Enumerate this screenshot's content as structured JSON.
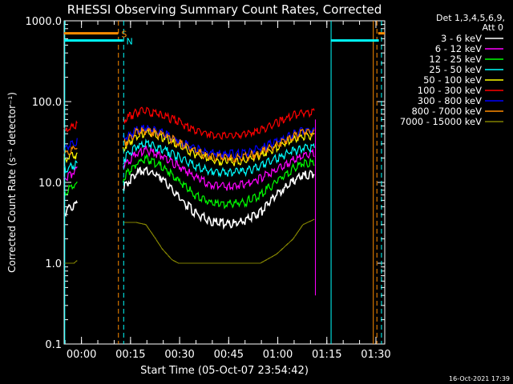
{
  "chart_data": {
    "type": "line",
    "title": "RHESSI Observing Summary Count Rates, Corrected",
    "xlabel": "Start Time (05-Oct-07 23:54:42)",
    "ylabel": "Corrected Count Rate (s⁻¹ detector⁻¹)",
    "y_scale": "log",
    "ylim": [
      0.1,
      1000
    ],
    "xlim_minutes": [
      0,
      98
    ],
    "y_ticks": [
      "0.1",
      "1.0",
      "10.0",
      "100.0",
      "1000.0"
    ],
    "x_ticks": [
      {
        "label": "00:00",
        "min": 5.3
      },
      {
        "label": "00:15",
        "min": 20.3
      },
      {
        "label": "00:30",
        "min": 35.3
      },
      {
        "label": "00:45",
        "min": 50.3
      },
      {
        "label": "01:00",
        "min": 65.3
      },
      {
        "label": "01:15",
        "min": 80.3
      },
      {
        "label": "01:30",
        "min": 95.3
      }
    ],
    "legend_header": [
      "Det 1,3,4,5,6,9,",
      "Att 0"
    ],
    "legend_position": "right",
    "timestamp": "16-Oct-2021 17:39",
    "flags": [
      {
        "label": "S",
        "color": "#ff8c00",
        "value": 700,
        "segments": [
          [
            0,
            16.5
          ],
          [
            96,
            98
          ]
        ]
      },
      {
        "label": "N",
        "color": "#00ffff",
        "value": 570,
        "segments": [
          [
            0,
            18
          ],
          [
            81.5,
            96.2
          ]
        ]
      }
    ],
    "markers": [
      {
        "min": 16.6,
        "color": "#ff8c00"
      },
      {
        "min": 18.2,
        "color": "#00ffff"
      },
      {
        "min": 95.6,
        "color": "#ff8c00"
      },
      {
        "min": 97.0,
        "color": "#00ffff"
      }
    ],
    "gaps": [
      {
        "min": 0.2,
        "color": "#00ffff"
      },
      {
        "min": 81.6,
        "color": "#00ffff"
      },
      {
        "min": 94.5,
        "color": "#ff8c00"
      }
    ],
    "series": [
      {
        "name": "3 - 6 keV",
        "color": "#ffffff",
        "x": [
          0,
          4,
          18,
          22,
          25,
          30,
          35,
          40,
          45,
          50,
          55,
          60,
          65,
          70,
          73,
          76.5
        ],
        "y": [
          4.5,
          6,
          9,
          14,
          15,
          12,
          7,
          4.5,
          3.5,
          3.3,
          3.5,
          4.5,
          7.5,
          11,
          13,
          13.5
        ]
      },
      {
        "name": "6 - 12 keV",
        "color": "#ff00ff",
        "x": [
          0,
          4,
          18,
          22,
          25,
          30,
          35,
          40,
          45,
          50,
          55,
          60,
          65,
          70,
          73,
          76.5
        ],
        "y": [
          12,
          15,
          17,
          24,
          27,
          23,
          17,
          12.5,
          10,
          9.5,
          10,
          12,
          15.5,
          20,
          23,
          24
        ]
      },
      {
        "name": "12 - 25 keV",
        "color": "#00ff00",
        "x": [
          0,
          4,
          18,
          22,
          25,
          30,
          35,
          40,
          45,
          50,
          55,
          60,
          65,
          70,
          73,
          76.5
        ],
        "y": [
          8,
          10,
          12,
          18,
          21,
          17,
          11,
          7.5,
          6,
          5.8,
          6,
          7.5,
          11,
          16,
          18.5,
          19
        ]
      },
      {
        "name": "25 - 50 keV",
        "color": "#00ffff",
        "x": [
          0,
          4,
          18,
          22,
          25,
          30,
          35,
          40,
          45,
          50,
          55,
          60,
          65,
          70,
          73,
          76.5
        ],
        "y": [
          15,
          18,
          20,
          30,
          32,
          28,
          22,
          17,
          14.5,
          14,
          14.5,
          17,
          21,
          26,
          28,
          29
        ]
      },
      {
        "name": "50 - 100 keV",
        "color": "#ffff00",
        "x": [
          0,
          4,
          18,
          22,
          25,
          30,
          35,
          40,
          45,
          50,
          55,
          60,
          65,
          70,
          73,
          76.5
        ],
        "y": [
          20,
          24,
          28,
          40,
          44,
          39,
          31,
          24,
          20,
          19,
          20,
          23,
          29,
          36,
          40,
          41
        ]
      },
      {
        "name": "100 - 300 keV",
        "color": "#ff0000",
        "x": [
          0,
          4,
          18,
          22,
          25,
          30,
          35,
          40,
          45,
          50,
          55,
          60,
          65,
          70,
          73,
          76.5
        ],
        "y": [
          45,
          55,
          62,
          78,
          82,
          74,
          60,
          48,
          42,
          41,
          42,
          47,
          58,
          72,
          78,
          80
        ]
      },
      {
        "name": "300 - 800 keV",
        "color": "#0000ff",
        "x": [
          0,
          4,
          18,
          22,
          25,
          30,
          35,
          40,
          45,
          50,
          55,
          60,
          65,
          70,
          73,
          76.5
        ],
        "y": [
          28,
          34,
          36,
          47,
          50,
          44,
          35,
          28,
          24.5,
          24,
          24.5,
          28,
          34,
          42,
          47,
          49
        ]
      },
      {
        "name": "800 - 7000 keV",
        "color": "#ff8c00",
        "x": [
          0,
          4,
          18,
          22,
          25,
          30,
          35,
          40,
          45,
          50,
          55,
          60,
          65,
          70,
          73,
          76.5
        ],
        "y": [
          24,
          29,
          32,
          44,
          47,
          42,
          33,
          26,
          22,
          21,
          22,
          25,
          31,
          39,
          44,
          45
        ]
      },
      {
        "name": "7000 - 15000 keV",
        "color": "#808000",
        "x": [
          0,
          3,
          18,
          22,
          25,
          28,
          30,
          33,
          35,
          40,
          45,
          50,
          55,
          60,
          65,
          70,
          73,
          76.5
        ],
        "y": [
          1.0,
          1.0,
          3.2,
          3.2,
          3.0,
          2.0,
          1.5,
          1.1,
          1.0,
          1.0,
          1.0,
          1.0,
          1.0,
          1.0,
          1.3,
          2.0,
          3.0,
          3.5
        ]
      }
    ]
  }
}
